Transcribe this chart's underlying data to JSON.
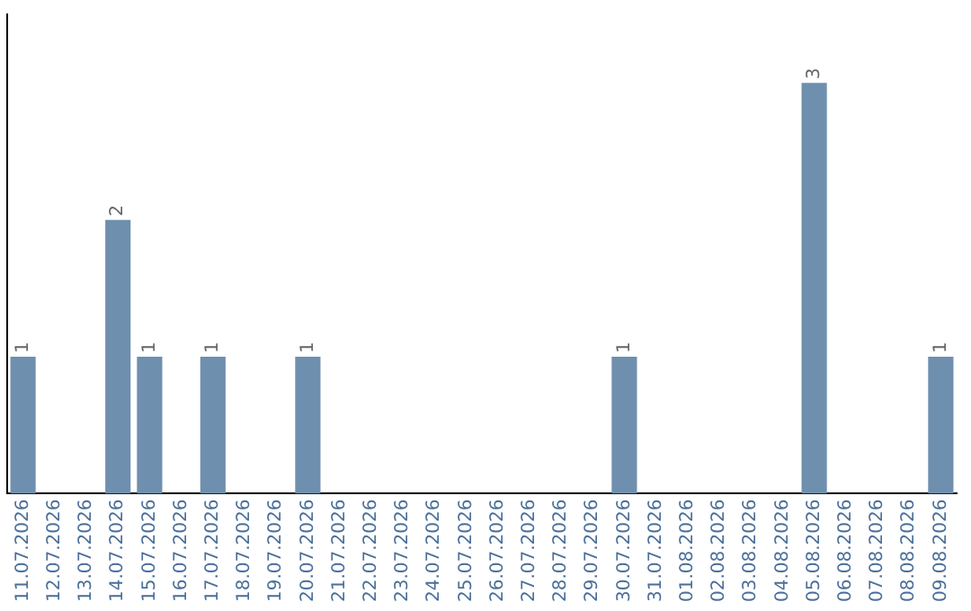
{
  "chart_data": {
    "type": "bar",
    "categories": [
      "11.07.2026",
      "12.07.2026",
      "13.07.2026",
      "14.07.2026",
      "15.07.2026",
      "16.07.2026",
      "17.07.2026",
      "18.07.2026",
      "19.07.2026",
      "20.07.2026",
      "21.07.2026",
      "22.07.2026",
      "23.07.2026",
      "24.07.2026",
      "25.07.2026",
      "26.07.2026",
      "27.07.2026",
      "28.07.2026",
      "29.07.2026",
      "30.07.2026",
      "31.07.2026",
      "01.08.2026",
      "02.08.2026",
      "03.08.2026",
      "04.08.2026",
      "05.08.2026",
      "06.08.2026",
      "07.08.2026",
      "08.08.2026",
      "09.08.2026"
    ],
    "values": [
      1,
      0,
      0,
      2,
      1,
      0,
      1,
      0,
      0,
      1,
      0,
      0,
      0,
      0,
      0,
      0,
      0,
      0,
      0,
      1,
      0,
      0,
      0,
      0,
      0,
      3,
      0,
      0,
      0,
      1
    ],
    "value_labels": [
      "1",
      null,
      null,
      "2",
      "1",
      null,
      "1",
      null,
      null,
      "1",
      null,
      null,
      null,
      null,
      null,
      null,
      null,
      null,
      null,
      "1",
      null,
      null,
      null,
      null,
      null,
      "3",
      null,
      null,
      null,
      "1"
    ],
    "color": "#6f8fae",
    "grid": false,
    "legend": false,
    "tick_labels": "x"
  }
}
